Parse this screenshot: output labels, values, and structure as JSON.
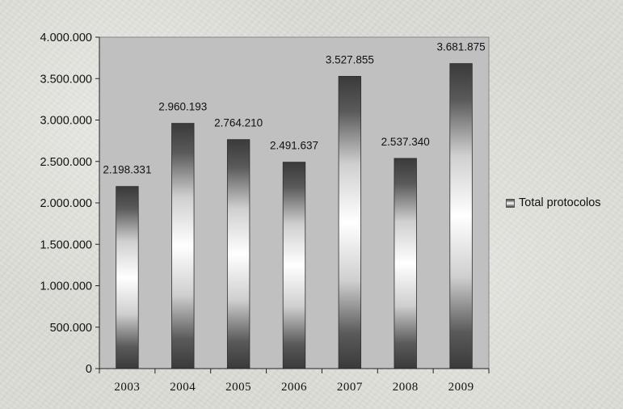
{
  "chart_data": {
    "type": "bar",
    "title": "",
    "xlabel": "",
    "ylabel": "",
    "categories": [
      "2003",
      "2004",
      "2005",
      "2006",
      "2007",
      "2008",
      "2009"
    ],
    "series": [
      {
        "name": "Total protocolos",
        "values": [
          2198331,
          2960193,
          2764210,
          2491637,
          3527855,
          2537340,
          3681875
        ]
      }
    ],
    "data_labels": [
      "2.198.331",
      "2.960.193",
      "2.764.210",
      "2.491.637",
      "3.527.855",
      "2.537.340",
      "3.681.875"
    ],
    "ylim": [
      0,
      4000000
    ],
    "y_ticks": [
      0,
      500000,
      1000000,
      1500000,
      2000000,
      2500000,
      3000000,
      3500000,
      4000000
    ],
    "y_tick_labels": [
      "0",
      "500.000",
      "1.000.000",
      "1.500.000",
      "2.000.000",
      "2.500.000",
      "3.000.000",
      "3.500.000",
      "4.000.000"
    ],
    "grid": false,
    "legend_position": "right",
    "colors": {
      "plot_background": "#c0c0c0",
      "bar_dark": "#3a3a3a",
      "bar_light": "#ffffff"
    }
  },
  "legend": {
    "label": "Total protocolos"
  }
}
